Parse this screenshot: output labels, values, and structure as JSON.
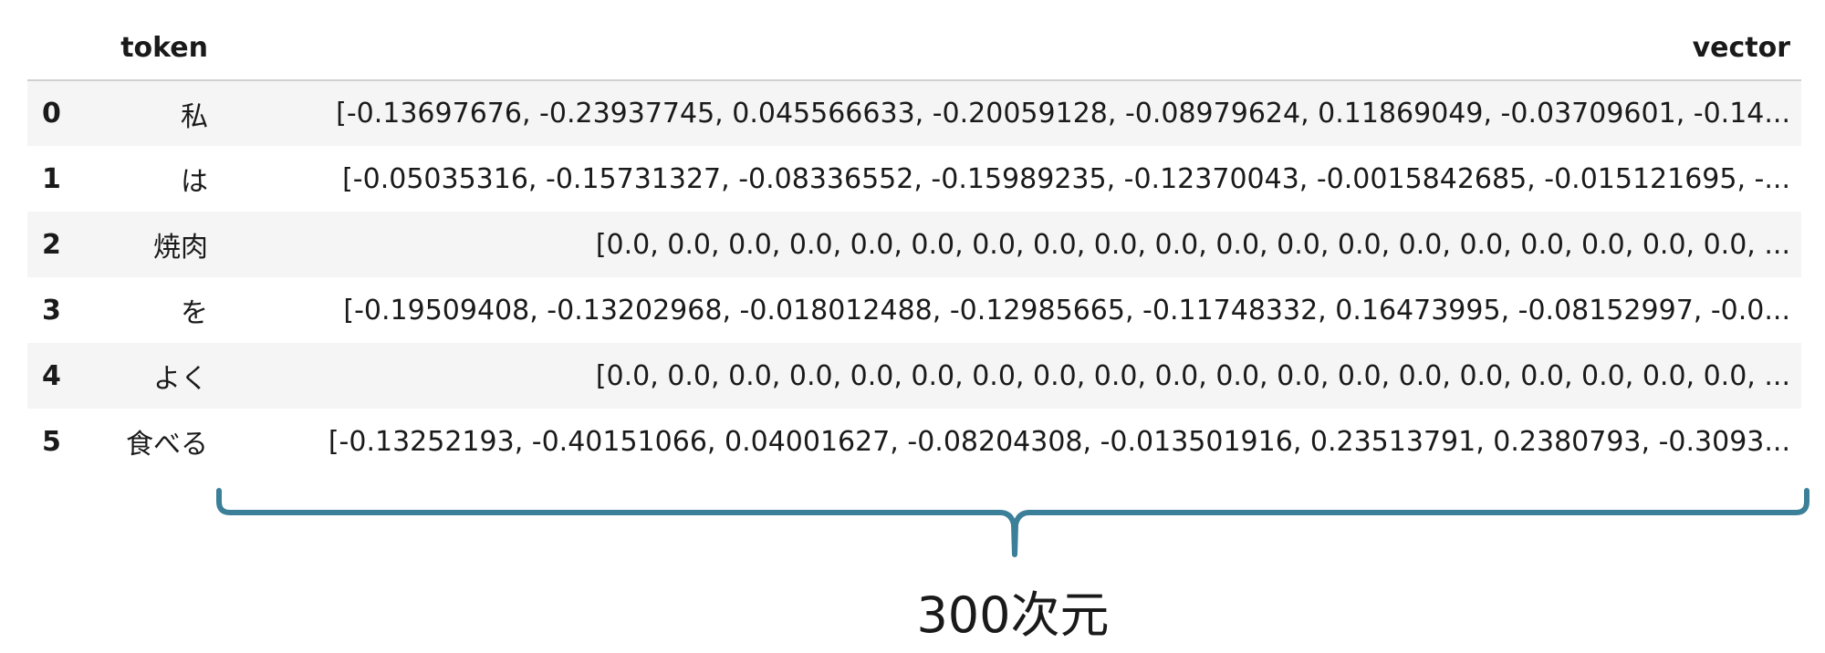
{
  "table": {
    "columns": {
      "index": "",
      "token": "token",
      "vector": "vector"
    },
    "rows": [
      {
        "index": "0",
        "token": "私",
        "vector": "[-0.13697676, -0.23937745, 0.045566633, -0.20059128, -0.08979624, 0.11869049, -0.03709601, -0.14..."
      },
      {
        "index": "1",
        "token": "は",
        "vector": "[-0.05035316, -0.15731327, -0.08336552, -0.15989235, -0.12370043, -0.0015842685, -0.015121695, -..."
      },
      {
        "index": "2",
        "token": "焼肉",
        "vector": "[0.0, 0.0, 0.0, 0.0, 0.0, 0.0, 0.0, 0.0, 0.0, 0.0, 0.0, 0.0, 0.0, 0.0, 0.0, 0.0, 0.0, 0.0, 0.0, ..."
      },
      {
        "index": "3",
        "token": "を",
        "vector": "[-0.19509408, -0.13202968, -0.018012488, -0.12985665, -0.11748332, 0.16473995, -0.08152997, -0.0..."
      },
      {
        "index": "4",
        "token": "よく",
        "vector": "[0.0, 0.0, 0.0, 0.0, 0.0, 0.0, 0.0, 0.0, 0.0, 0.0, 0.0, 0.0, 0.0, 0.0, 0.0, 0.0, 0.0, 0.0, 0.0, ..."
      },
      {
        "index": "5",
        "token": "食べる",
        "vector": "[-0.13252193, -0.40151066, 0.04001627, -0.08204308, -0.013501916, 0.23513791, 0.2380793, -0.3093..."
      }
    ]
  },
  "annotation": {
    "label": "300次元",
    "brace_color": "#3b7f98"
  }
}
